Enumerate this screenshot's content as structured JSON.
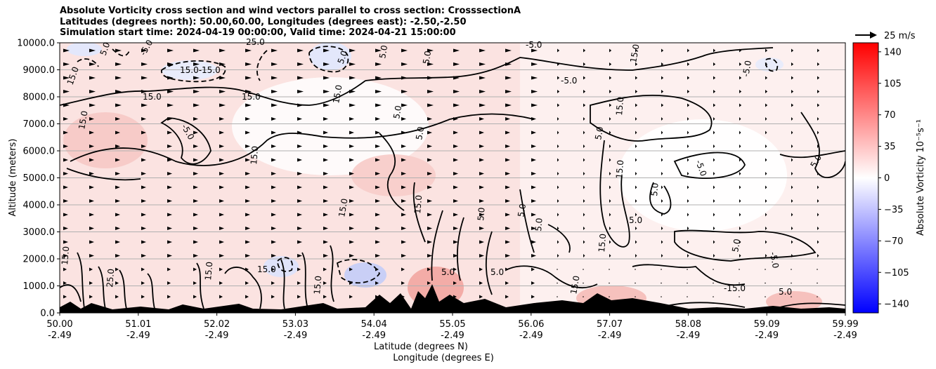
{
  "title_lines": [
    "Absolute Vorticity cross section and wind vectors parallel to cross section: CrosssectionA",
    "Latitudes (degrees north): 50.00,60.00, Longitudes (degrees east): -2.50,-2.50",
    "Simulation start time: 2024-04-19 00:00:00, Valid time: 2024-04-21 15:00:00"
  ],
  "chart_data": {
    "type": "heatmap",
    "title": "Absolute Vorticity cross section and wind vectors parallel to cross section: CrosssectionA",
    "ylabel": "Altitude (meters)",
    "xlabel_lines": [
      "Latitude (degrees N)",
      "Longitude (degrees E)"
    ],
    "ylim": [
      0,
      10000
    ],
    "y_ticks": [
      "0.0",
      "1000.0",
      "2000.0",
      "3000.0",
      "4000.0",
      "5000.0",
      "6000.0",
      "7000.0",
      "8000.0",
      "9000.0",
      "10000.0"
    ],
    "x_ticks": [
      {
        "lat": "50.00",
        "lon": "-2.49"
      },
      {
        "lat": "51.01",
        "lon": "-2.49"
      },
      {
        "lat": "52.02",
        "lon": "-2.49"
      },
      {
        "lat": "53.03",
        "lon": "-2.49"
      },
      {
        "lat": "54.04",
        "lon": "-2.49"
      },
      {
        "lat": "55.05",
        "lon": "-2.49"
      },
      {
        "lat": "56.06",
        "lon": "-2.49"
      },
      {
        "lat": "57.07",
        "lon": "-2.49"
      },
      {
        "lat": "58.08",
        "lon": "-2.49"
      },
      {
        "lat": "59.09",
        "lon": "-2.49"
      },
      {
        "lat": "59.99",
        "lon": "-2.49"
      }
    ],
    "grid": true,
    "colorbar": {
      "label": "Absolute Vorticity 10⁻⁵s⁻¹",
      "range": [
        -150,
        150
      ],
      "ticks": [
        "140",
        "105",
        "70",
        "35",
        "0",
        "−35",
        "−70",
        "−105",
        "−140"
      ],
      "colormap": [
        "#0000ff",
        "#ffffff",
        "#ff0000"
      ]
    },
    "quiver_key": {
      "label": "25 m/s"
    },
    "contour_levels": [
      -15,
      -5,
      5,
      15,
      25
    ],
    "contour_labels": [
      "15.0",
      "5.0",
      "-5.0",
      "-15.0",
      "25.0",
      "15.0-15.0",
      "-5.0",
      "5.0",
      "15.0",
      "5.0",
      "-5.0",
      "5.0",
      "15.0",
      "5.0",
      "5.0",
      "15.0",
      "-15.0"
    ]
  }
}
